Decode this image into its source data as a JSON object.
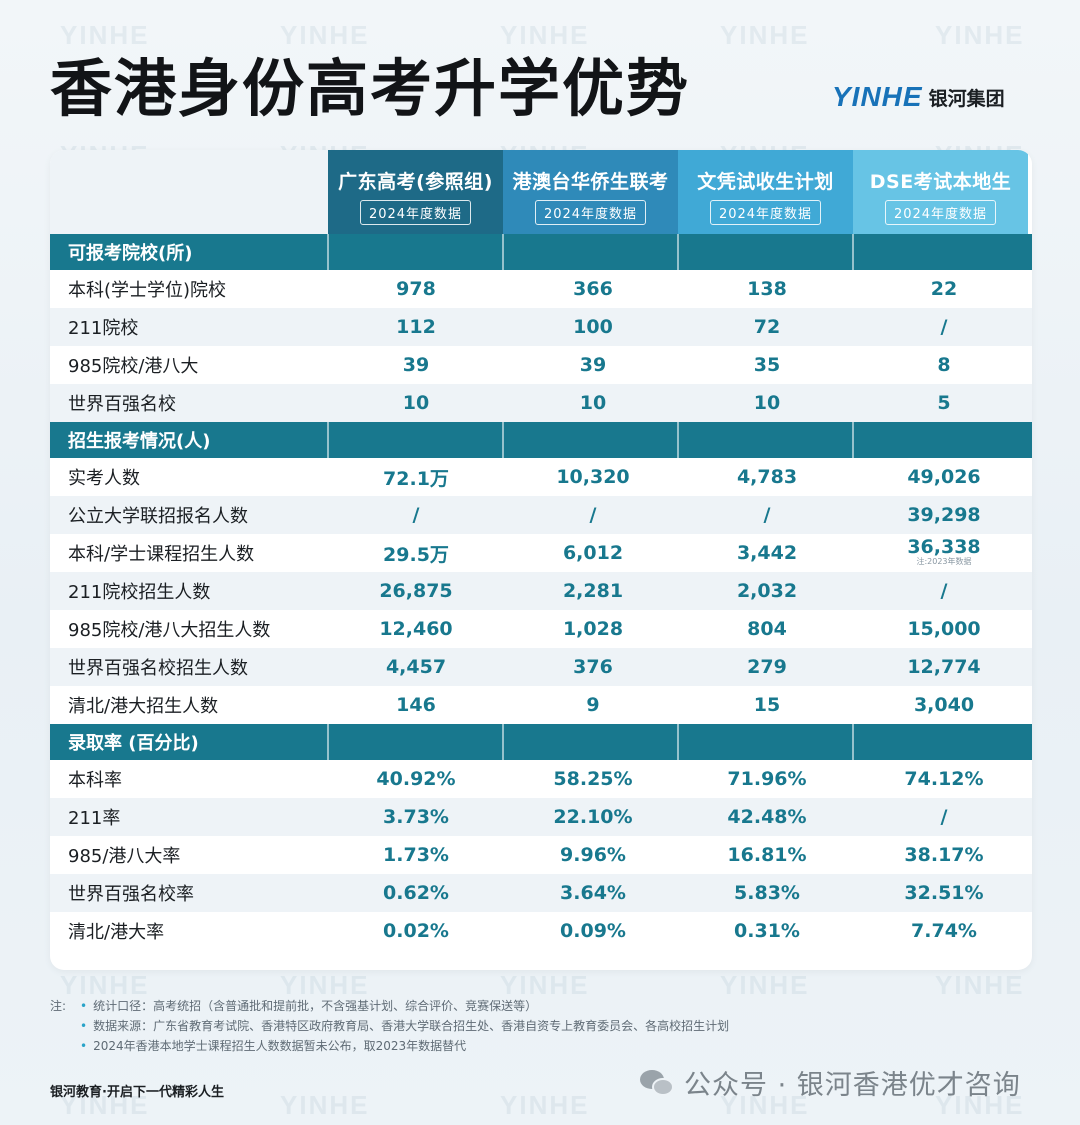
{
  "title": "香港身份高考升学优势",
  "brand": {
    "logo": "YINHE",
    "name": "银河集团"
  },
  "watermark": "YINHE",
  "columns": [
    {
      "title": "广东高考(参照组)",
      "tag": "2024年度数据",
      "color": "#1e6a87"
    },
    {
      "title": "港澳台华侨生联考",
      "tag": "2024年度数据",
      "color": "#2f8ab9"
    },
    {
      "title": "文凭试收生计划",
      "tag": "2024年度数据",
      "color": "#40a9d6"
    },
    {
      "title": "DSE考试本地生",
      "tag": "2024年度数据",
      "color": "#67c4e5"
    }
  ],
  "sections": [
    {
      "label": "可报考院校(所)",
      "rows": [
        {
          "label": "本科(学士学位)院校",
          "values": [
            "978",
            "366",
            "138",
            "22"
          ]
        },
        {
          "label": "211院校",
          "values": [
            "112",
            "100",
            "72",
            "/"
          ]
        },
        {
          "label": "985院校/港八大",
          "values": [
            "39",
            "39",
            "35",
            "8"
          ]
        },
        {
          "label": "世界百强名校",
          "values": [
            "10",
            "10",
            "10",
            "5"
          ]
        }
      ]
    },
    {
      "label": "招生报考情况(人)",
      "rows": [
        {
          "label": "实考人数",
          "values": [
            "72.1万",
            "10,320",
            "4,783",
            "49,026"
          ]
        },
        {
          "label": "公立大学联招报名人数",
          "values": [
            "/",
            "/",
            "/",
            "39,298"
          ]
        },
        {
          "label": "本科/学士课程招生人数",
          "values": [
            "29.5万",
            "6,012",
            "3,442",
            "36,338"
          ],
          "note": "注:2023年数据"
        },
        {
          "label": "211院校招生人数",
          "values": [
            "26,875",
            "2,281",
            "2,032",
            "/"
          ]
        },
        {
          "label": "985院校/港八大招生人数",
          "values": [
            "12,460",
            "1,028",
            "804",
            "15,000"
          ]
        },
        {
          "label": "世界百强名校招生人数",
          "values": [
            "4,457",
            "376",
            "279",
            "12,774"
          ]
        },
        {
          "label": "清北/港大招生人数",
          "values": [
            "146",
            "9",
            "15",
            "3,040"
          ]
        }
      ]
    },
    {
      "label": "录取率 (百分比)",
      "rows": [
        {
          "label": "本科率",
          "values": [
            "40.92%",
            "58.25%",
            "71.96%",
            "74.12%"
          ]
        },
        {
          "label": "211率",
          "values": [
            "3.73%",
            "22.10%",
            "42.48%",
            "/"
          ]
        },
        {
          "label": "985/港八大率",
          "values": [
            "1.73%",
            "9.96%",
            "16.81%",
            "38.17%"
          ]
        },
        {
          "label": "世界百强名校率",
          "values": [
            "0.62%",
            "3.64%",
            "5.83%",
            "32.51%"
          ]
        },
        {
          "label": "清北/港大率",
          "values": [
            "0.02%",
            "0.09%",
            "0.31%",
            "7.74%"
          ]
        }
      ]
    }
  ],
  "notes": {
    "head": "注:",
    "items": [
      "统计口径：高考统招（含普通批和提前批，不含强基计划、综合评价、竞赛保送等）",
      "数据来源：广东省教育考试院、香港特区政府教育局、香港大学联合招生处、香港自资专上教育委员会、各高校招生计划",
      "2024年香港本地学士课程招生人数数据暂未公布，取2023年数据替代"
    ]
  },
  "slogan": "银河教育·开启下一代精彩人生",
  "wechat": "公众号 · 银河香港优才咨询",
  "colors": {
    "section": "#18788e",
    "value": "#18788e",
    "alt_row": "#eef3f7"
  }
}
